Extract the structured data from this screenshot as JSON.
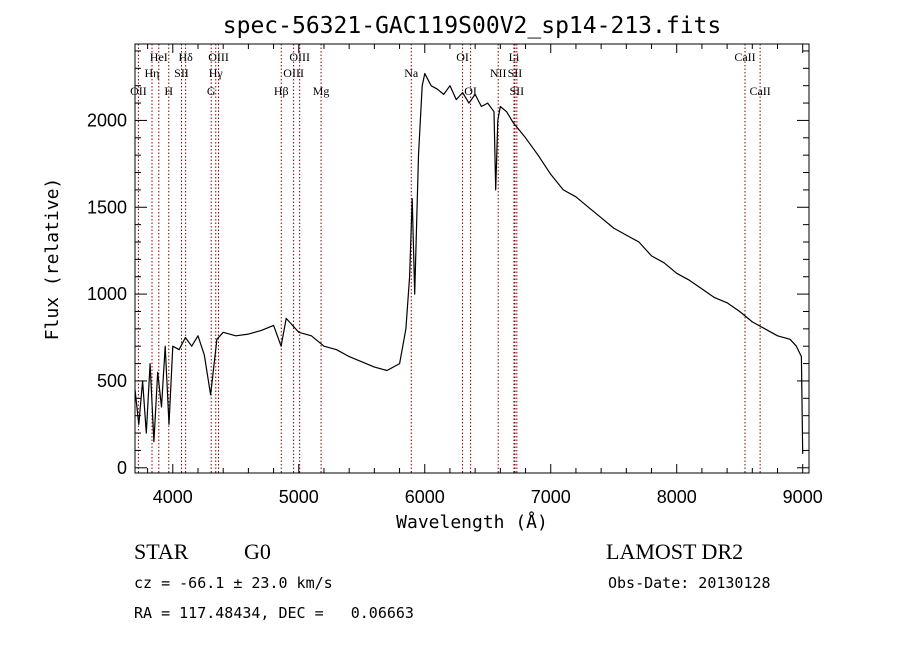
{
  "chart_data": {
    "type": "line",
    "title": "spec-56321-GAC119S00V2_sp14-213.fits",
    "xlabel": "Wavelength (Å)",
    "ylabel": "Flux (relative)",
    "xlim": [
      3700,
      9050
    ],
    "ylim": [
      -30,
      2440
    ],
    "x_ticks": [
      4000,
      5000,
      6000,
      7000,
      8000,
      9000
    ],
    "y_ticks": [
      0,
      500,
      1000,
      1500,
      2000
    ],
    "grid": false,
    "line_color": "#000000",
    "marker_color": "#8b0000",
    "series": [
      {
        "x": [
          3700,
          3730,
          3760,
          3790,
          3820,
          3850,
          3880,
          3910,
          3940,
          3970,
          4000,
          4050,
          4100,
          4150,
          4200,
          4250,
          4300,
          4350,
          4400,
          4500,
          4600,
          4700,
          4800,
          4860,
          4900,
          5000,
          5100,
          5200,
          5300,
          5400,
          5500,
          5600,
          5700,
          5800,
          5850,
          5880,
          5900,
          5920,
          5950,
          5980,
          6000,
          6050,
          6100,
          6150,
          6200,
          6250,
          6300,
          6350,
          6400,
          6450,
          6500,
          6550,
          6563,
          6580,
          6600,
          6650,
          6700,
          6800,
          6900,
          7000,
          7100,
          7200,
          7300,
          7400,
          7500,
          7600,
          7700,
          7800,
          7900,
          8000,
          8100,
          8200,
          8300,
          8400,
          8500,
          8600,
          8700,
          8800,
          8900,
          8950,
          8990,
          9000
        ],
        "y": [
          450,
          250,
          500,
          200,
          600,
          150,
          550,
          350,
          700,
          250,
          700,
          680,
          750,
          700,
          760,
          650,
          420,
          740,
          780,
          760,
          770,
          790,
          820,
          700,
          860,
          780,
          760,
          700,
          680,
          640,
          610,
          580,
          560,
          600,
          800,
          1100,
          1550,
          1000,
          1800,
          2200,
          2270,
          2200,
          2180,
          2150,
          2200,
          2120,
          2160,
          2100,
          2150,
          2080,
          2100,
          2050,
          1600,
          2000,
          2080,
          2050,
          1990,
          1900,
          1800,
          1690,
          1600,
          1560,
          1500,
          1440,
          1380,
          1340,
          1300,
          1220,
          1180,
          1120,
          1080,
          1030,
          980,
          950,
          900,
          840,
          800,
          760,
          740,
          700,
          640,
          80
        ]
      }
    ],
    "line_markers": [
      {
        "label": "OII",
        "x": 3727,
        "row": 3
      },
      {
        "label": "Hη",
        "x": 3835,
        "row": 2
      },
      {
        "label": "HeI",
        "x": 3889,
        "row": 1
      },
      {
        "label": "H",
        "x": 3968,
        "row": 3
      },
      {
        "label": "SII",
        "x": 4069,
        "row": 2
      },
      {
        "label": "Hδ",
        "x": 4102,
        "row": 1
      },
      {
        "label": "G",
        "x": 4305,
        "row": 3
      },
      {
        "label": "Hγ",
        "x": 4341,
        "row": 2
      },
      {
        "label": "OIII",
        "x": 4363,
        "row": 1
      },
      {
        "label": "Hβ",
        "x": 4861,
        "row": 3
      },
      {
        "label": "OIII",
        "x": 4959,
        "row": 2
      },
      {
        "label": "OIII",
        "x": 5007,
        "row": 1
      },
      {
        "label": "Mg",
        "x": 5177,
        "row": 3
      },
      {
        "label": "Na",
        "x": 5893,
        "row": 2
      },
      {
        "label": "OI",
        "x": 6300,
        "row": 1
      },
      {
        "label": "OI",
        "x": 6364,
        "row": 3
      },
      {
        "label": "NII",
        "x": 6583,
        "row": 2
      },
      {
        "label": "Li",
        "x": 6708,
        "row": 1
      },
      {
        "label": "SII",
        "x": 6716,
        "row": 2
      },
      {
        "label": "SII",
        "x": 6731,
        "row": 3
      },
      {
        "label": "CaII",
        "x": 8542,
        "row": 1
      },
      {
        "label": "CaII",
        "x": 8662,
        "row": 3
      }
    ]
  },
  "info": {
    "class_label": "STAR",
    "subclass": "G0",
    "survey": "LAMOST DR2",
    "redshift_text": "cz = -66.1 ± 23.0 km/s",
    "obs_date_text": "Obs-Date: 20130128",
    "coords_text": "RA = 117.48434, DEC =   0.06663"
  }
}
